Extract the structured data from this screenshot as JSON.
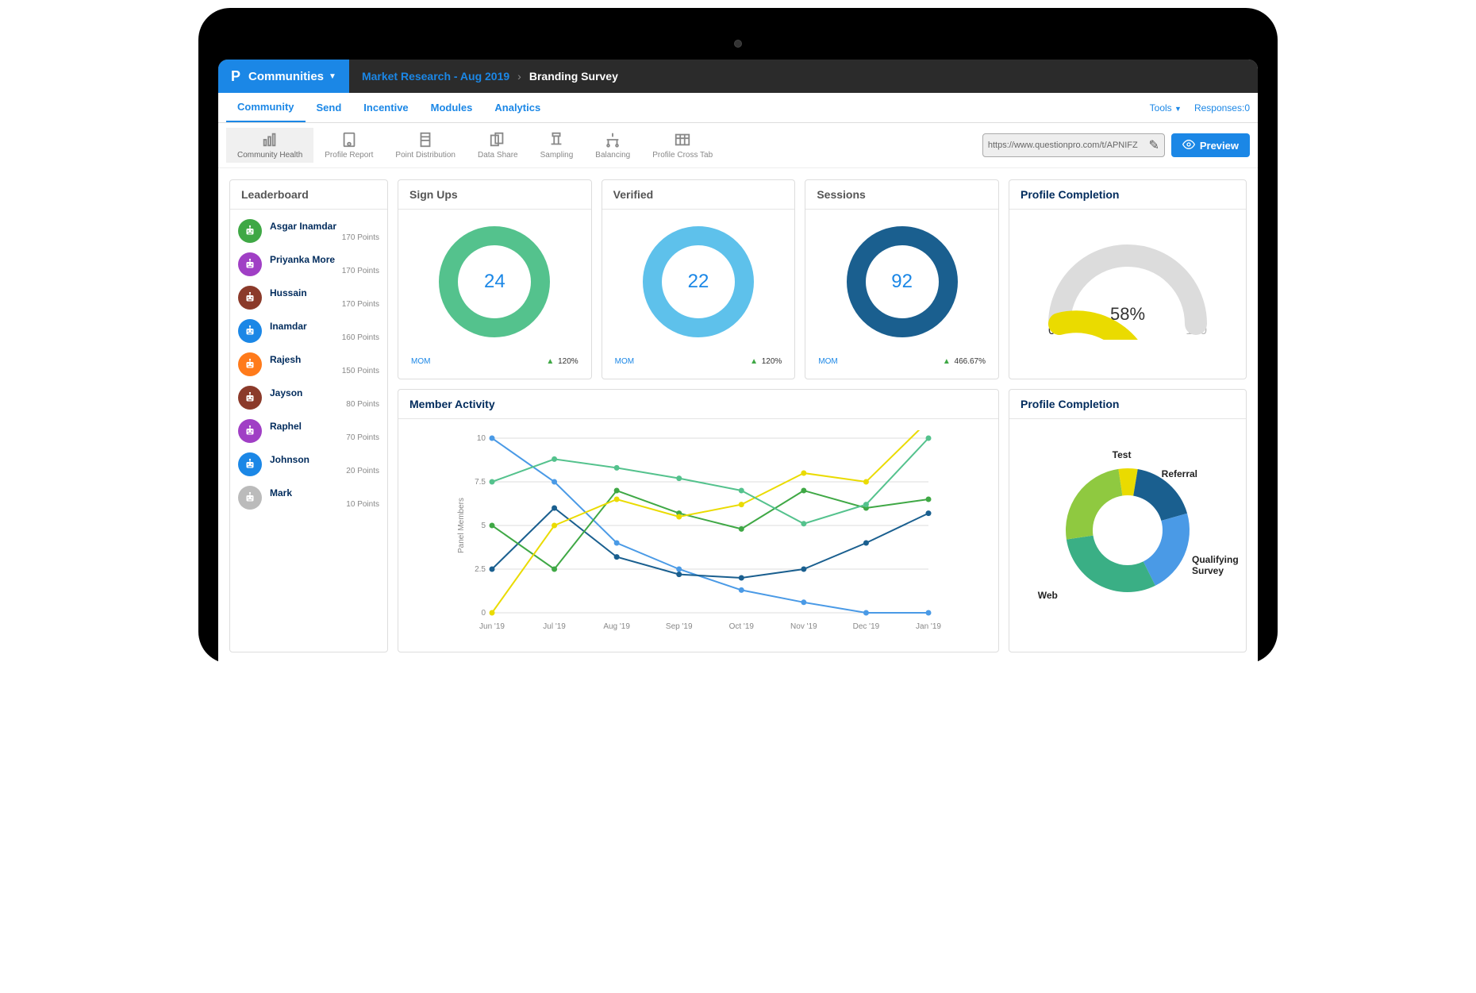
{
  "brand": {
    "logo": "P",
    "name": "Communities"
  },
  "breadcrumb": {
    "parent": "Market Research - Aug 2019",
    "current": "Branding Survey"
  },
  "nav": {
    "tabs": [
      "Community",
      "Send",
      "Incentive",
      "Modules",
      "Analytics"
    ],
    "tools_label": "Tools",
    "responses_label": "Responses:",
    "responses_count": "0"
  },
  "toolbar": {
    "items": [
      "Community Health",
      "Profile Report",
      "Point Distribution",
      "Data Share",
      "Sampling",
      "Balancing",
      "Profile Cross Tab"
    ],
    "url": "https://www.questionpro.com/t/APNIFZ",
    "preview": "Preview"
  },
  "leaderboard": {
    "title": "Leaderboard",
    "items": [
      {
        "name": "Asgar Inamdar",
        "points": "170 Points",
        "color": "#3fa845"
      },
      {
        "name": "Priyanka More",
        "points": "170 Points",
        "color": "#a03fc5"
      },
      {
        "name": "Hussain",
        "points": "170 Points",
        "color": "#8b3a2a"
      },
      {
        "name": "Inamdar",
        "points": "160 Points",
        "color": "#1b87e6"
      },
      {
        "name": "Rajesh",
        "points": "150 Points",
        "color": "#ff7a1a"
      },
      {
        "name": "Jayson",
        "points": "80 Points",
        "color": "#8b3a2a"
      },
      {
        "name": "Raphel",
        "points": "70 Points",
        "color": "#a03fc5"
      },
      {
        "name": "Johnson",
        "points": "20 Points",
        "color": "#1b87e6"
      },
      {
        "name": "Mark",
        "points": "10 Points",
        "color": "#bbbbbb"
      }
    ]
  },
  "stats": [
    {
      "title": "Sign Ups",
      "value": "24",
      "ring_color": "#54c28d",
      "mom": "MOM",
      "delta": "120%"
    },
    {
      "title": "Verified",
      "value": "22",
      "ring_color": "#5ec1eb",
      "mom": "MOM",
      "delta": "120%"
    },
    {
      "title": "Sessions",
      "value": "92",
      "ring_color": "#1a5f8f",
      "mom": "MOM",
      "delta": "466.67%"
    }
  ],
  "gauge": {
    "title": "Profile Completion",
    "percent": 58,
    "percent_label": "58%",
    "min": "0",
    "max": "100",
    "fill_color": "#eadb00",
    "track_color": "#dcdcdc"
  },
  "activity": {
    "title": "Member Activity",
    "ylabel": "Panel Members",
    "ylim": [
      0,
      10
    ],
    "ytick_step": 2.5,
    "categories": [
      "Jun '19",
      "Jul '19",
      "Aug '19",
      "Sep '19",
      "Oct '19",
      "Nov '19",
      "Dec '19",
      "Jan '19"
    ],
    "series": [
      {
        "color": "#4a9ae6",
        "values": [
          10,
          7.5,
          4,
          2.5,
          1.3,
          0.6,
          0,
          0
        ]
      },
      {
        "color": "#1a5f8f",
        "values": [
          2.5,
          6,
          3.2,
          2.2,
          2,
          2.5,
          4,
          5.7
        ]
      },
      {
        "color": "#3fa845",
        "values": [
          5,
          2.5,
          7,
          5.7,
          4.8,
          7,
          6,
          6.5
        ]
      },
      {
        "color": "#eadb00",
        "values": [
          0,
          5,
          6.5,
          5.5,
          6.2,
          8,
          7.5,
          11
        ]
      },
      {
        "color": "#54c28d",
        "values": [
          7.5,
          8.8,
          8.3,
          7.7,
          7,
          5.1,
          6.2,
          10
        ]
      }
    ],
    "grid_color": "#dddddd",
    "background": "#ffffff"
  },
  "donut": {
    "title": "Profile Completion",
    "segments": [
      {
        "label": "Test",
        "value": 5,
        "color": "#eadb00"
      },
      {
        "label": "Referral",
        "value": 18,
        "color": "#1a5f8f"
      },
      {
        "label": "Qualifying Survey",
        "value": 22,
        "color": "#4a9ae6"
      },
      {
        "label": "Web",
        "value": 30,
        "color": "#3aaf85"
      },
      {
        "label": "",
        "value": 25,
        "color": "#8fc940"
      }
    ]
  }
}
